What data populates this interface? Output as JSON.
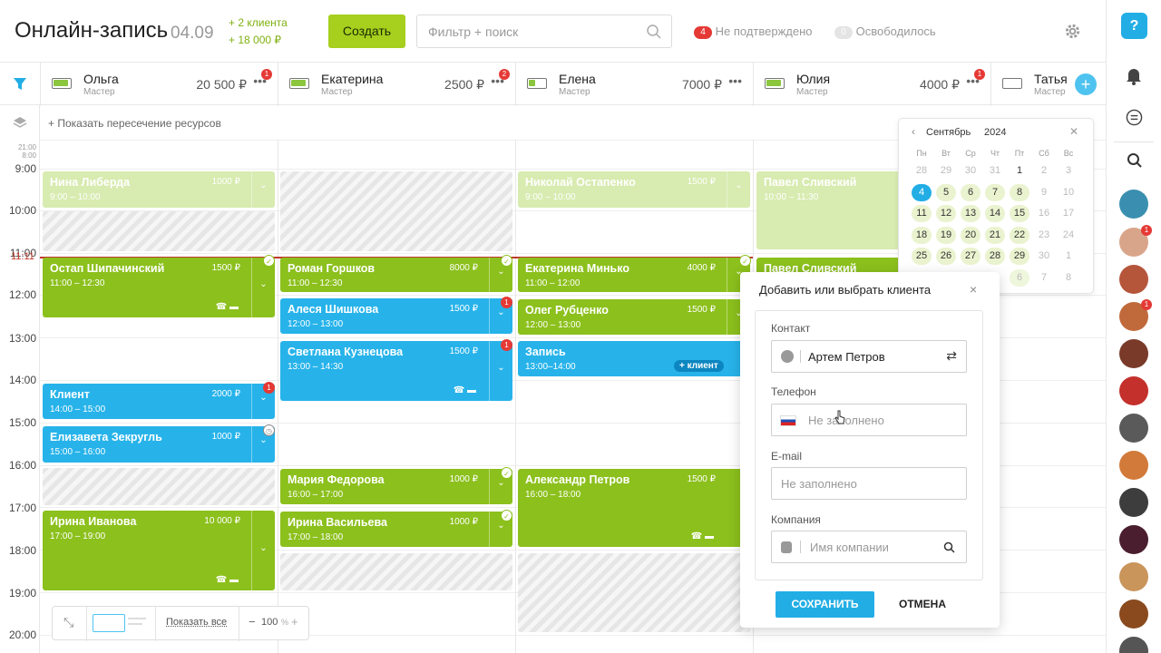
{
  "header": {
    "title": "Онлайн-запись",
    "date": "04.09",
    "clients_line1": "+ 2 клиента",
    "clients_line2": "+ 18 000 ₽",
    "create_label": "Создать",
    "search_placeholder": "Фильтр + поиск",
    "unconfirmed_count": "4",
    "unconfirmed_label": "Не подтверждено",
    "freed_count": "0",
    "freed_label": "Освободилось"
  },
  "staff": [
    {
      "name": "Ольга",
      "role": "Мастер",
      "sum": "20 500 ₽",
      "badge": "1"
    },
    {
      "name": "Екатерина",
      "role": "Мастер",
      "sum": "2500 ₽",
      "badge": "2"
    },
    {
      "name": "Елена",
      "role": "Мастер",
      "sum": "7000 ₽",
      "badge": ""
    },
    {
      "name": "Юлия",
      "role": "Мастер",
      "sum": "4000 ₽",
      "badge": "1"
    },
    {
      "name": "Татья",
      "role": "Мастер",
      "sum": "",
      "badge": ""
    }
  ],
  "resources_label": "+ Показать пересечение ресурсов",
  "hours": [
    "21:00",
    "8:00",
    "9:00",
    "10:00",
    "11:00",
    "12:00",
    "13:00",
    "14:00",
    "15:00",
    "16:00",
    "17:00",
    "18:00",
    "19:00",
    "20:00"
  ],
  "now_marker": "11:11",
  "events": [
    {
      "name": "Нина Либерда",
      "time": "9:00 – 10:00",
      "price": "1000 ₽"
    },
    {
      "name": "Остап Шипачинский",
      "time": "11:00 – 12:30",
      "price": "1500 ₽"
    },
    {
      "name": "Клиент",
      "time": "14:00 – 15:00",
      "price": "2000 ₽"
    },
    {
      "name": "Елизавета Зекругль",
      "time": "15:00 – 16:00",
      "price": "1000 ₽"
    },
    {
      "name": "Ирина Иванова",
      "time": "17:00 – 19:00",
      "price": "10 000 ₽"
    },
    {
      "name": "Роман Горшков",
      "time": "11:00 – 12:30",
      "price": "8000 ₽"
    },
    {
      "name": "Алеся Шишкова",
      "time": "12:00 – 13:00",
      "price": "1500 ₽"
    },
    {
      "name": "Светлана Кузнецова",
      "time": "13:00 – 14:30",
      "price": "1500 ₽"
    },
    {
      "name": "Мария Федорова",
      "time": "16:00 – 17:00",
      "price": "1000 ₽"
    },
    {
      "name": "Ирина Васильева",
      "time": "17:00 – 18:00",
      "price": "1000 ₽"
    },
    {
      "name": "Николай Остапенко",
      "time": "9:00 – 10:00",
      "price": "1500 ₽"
    },
    {
      "name": "Екатерина Минько",
      "time": "11:00 – 12:00",
      "price": "4000 ₽"
    },
    {
      "name": "Олег Рубценко",
      "time": "12:00 – 13:00",
      "price": "1500 ₽"
    },
    {
      "name": "Запись",
      "time": "13:00–14:00",
      "price": "",
      "add_client": "+ клиент"
    },
    {
      "name": "Александр Петров",
      "time": "16:00 – 18:00",
      "price": "1500 ₽"
    },
    {
      "name": "Павел Сливский",
      "time": "10:00 – 11:30",
      "price": ""
    },
    {
      "name": "Павел Сливский",
      "time": "",
      "price": ""
    }
  ],
  "calendar": {
    "month": "Сентябрь",
    "year": "2024",
    "weekdays": [
      "Пн",
      "Вт",
      "Ср",
      "Чт",
      "Пт",
      "Сб",
      "Вс"
    ],
    "days": [
      [
        "28",
        "29",
        "30",
        "31",
        "1",
        "2",
        "3"
      ],
      [
        "4",
        "5",
        "6",
        "7",
        "8",
        "9",
        "10"
      ],
      [
        "11",
        "12",
        "13",
        "14",
        "15",
        "16",
        "17"
      ],
      [
        "18",
        "19",
        "20",
        "21",
        "22",
        "23",
        "24"
      ],
      [
        "25",
        "26",
        "27",
        "28",
        "29",
        "30",
        "1"
      ],
      [
        "",
        "",
        "",
        "",
        "6",
        "7",
        "8"
      ]
    ],
    "selected": "4"
  },
  "modal": {
    "title": "Добавить или выбрать клиента",
    "contact_label": "Контакт",
    "contact_value": "Артем Петров",
    "phone_label": "Телефон",
    "phone_placeholder": "Не заполнено",
    "email_label": "E-mail",
    "email_placeholder": "Не заполнено",
    "company_label": "Компания",
    "company_placeholder": "Имя компании",
    "save_label": "СОХРАНИТЬ",
    "cancel_label": "ОТМЕНА"
  },
  "toolbar": {
    "show_all": "Показать все",
    "zoom": "100",
    "zoom_unit": "%"
  },
  "colors": {
    "green": "#8cc01d",
    "light_green": "#d8ebb0",
    "blue": "#27b3ea",
    "accent_button": "#a6cf1e",
    "badge_red": "#e53935"
  }
}
